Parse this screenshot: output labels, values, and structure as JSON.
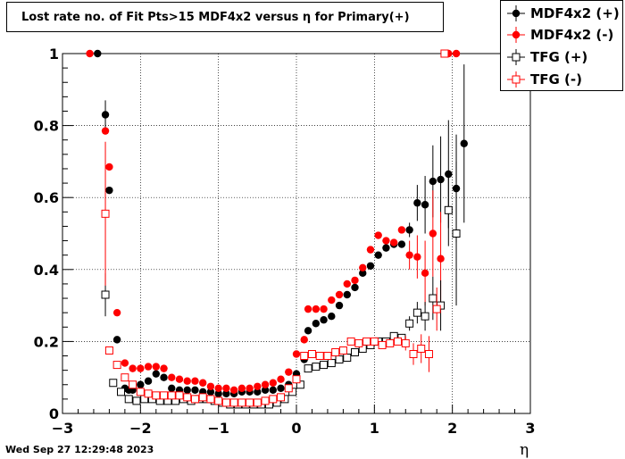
{
  "title": "Lost rate no. of Fit Pts>15 MDF4x2 versus η for Primary(+)",
  "date_stamp": "Wed Sep 27 12:29:48 2023",
  "chart_data": {
    "type": "scatter",
    "xlabel": "η",
    "ylabel": "",
    "xlim": [
      -3,
      3
    ],
    "ylim": [
      0,
      1.02
    ],
    "x_ticks": [
      "−3",
      "−2",
      "−1",
      "0",
      "1",
      "2",
      "3"
    ],
    "y_ticks": [
      "0",
      "0.2",
      "0.4",
      "0.6",
      "0.8",
      "1"
    ],
    "grid": true,
    "legend_position": "top-right",
    "series": [
      {
        "name": "MDF4x2 (+)",
        "color": "#000000",
        "marker": "filled-circle",
        "points": [
          [
            -2.55,
            1.0,
            0
          ],
          [
            -2.45,
            0.83,
            0.04
          ],
          [
            -2.4,
            0.62,
            0
          ],
          [
            -2.3,
            0.205,
            0
          ],
          [
            -2.2,
            0.07,
            0
          ],
          [
            -2.15,
            0.065,
            0
          ],
          [
            -2.1,
            0.065,
            0
          ],
          [
            -2.0,
            0.08,
            0
          ],
          [
            -1.9,
            0.09,
            0
          ],
          [
            -1.8,
            0.11,
            0
          ],
          [
            -1.7,
            0.1,
            0
          ],
          [
            -1.6,
            0.07,
            0
          ],
          [
            -1.5,
            0.065,
            0
          ],
          [
            -1.4,
            0.065,
            0
          ],
          [
            -1.3,
            0.065,
            0
          ],
          [
            -1.2,
            0.06,
            0
          ],
          [
            -1.1,
            0.06,
            0
          ],
          [
            -1.0,
            0.055,
            0
          ],
          [
            -0.9,
            0.055,
            0
          ],
          [
            -0.8,
            0.055,
            0
          ],
          [
            -0.7,
            0.06,
            0
          ],
          [
            -0.6,
            0.06,
            0
          ],
          [
            -0.5,
            0.06,
            0
          ],
          [
            -0.4,
            0.065,
            0
          ],
          [
            -0.3,
            0.065,
            0
          ],
          [
            -0.2,
            0.07,
            0
          ],
          [
            -0.1,
            0.08,
            0
          ],
          [
            0.0,
            0.11,
            0
          ],
          [
            0.1,
            0.15,
            0
          ],
          [
            0.15,
            0.23,
            0
          ],
          [
            0.25,
            0.25,
            0
          ],
          [
            0.35,
            0.26,
            0
          ],
          [
            0.45,
            0.27,
            0
          ],
          [
            0.55,
            0.3,
            0
          ],
          [
            0.65,
            0.33,
            0
          ],
          [
            0.75,
            0.35,
            0
          ],
          [
            0.85,
            0.39,
            0
          ],
          [
            0.95,
            0.41,
            0
          ],
          [
            1.05,
            0.44,
            0
          ],
          [
            1.15,
            0.46,
            0
          ],
          [
            1.25,
            0.47,
            0
          ],
          [
            1.35,
            0.47,
            0
          ],
          [
            1.45,
            0.51,
            0.02
          ],
          [
            1.55,
            0.585,
            0.05
          ],
          [
            1.65,
            0.58,
            0.08
          ],
          [
            1.75,
            0.645,
            0.1
          ],
          [
            1.85,
            0.65,
            0.12
          ],
          [
            1.95,
            0.665,
            0.15
          ],
          [
            2.05,
            0.625,
            0.15
          ],
          [
            2.15,
            0.75,
            0.22
          ]
        ]
      },
      {
        "name": "MDF4x2 (-)",
        "color": "#ff0000",
        "marker": "filled-circle",
        "points": [
          [
            -2.65,
            1.0,
            0
          ],
          [
            -2.45,
            0.785,
            0
          ],
          [
            -2.4,
            0.685,
            0
          ],
          [
            -2.3,
            0.28,
            0
          ],
          [
            -2.2,
            0.14,
            0
          ],
          [
            -2.1,
            0.125,
            0
          ],
          [
            -2.0,
            0.125,
            0
          ],
          [
            -1.9,
            0.13,
            0
          ],
          [
            -1.8,
            0.13,
            0
          ],
          [
            -1.7,
            0.125,
            0
          ],
          [
            -1.6,
            0.1,
            0
          ],
          [
            -1.5,
            0.095,
            0
          ],
          [
            -1.4,
            0.09,
            0
          ],
          [
            -1.3,
            0.09,
            0
          ],
          [
            -1.2,
            0.085,
            0
          ],
          [
            -1.1,
            0.075,
            0
          ],
          [
            -1.0,
            0.07,
            0
          ],
          [
            -0.9,
            0.07,
            0
          ],
          [
            -0.8,
            0.065,
            0
          ],
          [
            -0.7,
            0.07,
            0
          ],
          [
            -0.6,
            0.07,
            0
          ],
          [
            -0.5,
            0.075,
            0
          ],
          [
            -0.4,
            0.08,
            0
          ],
          [
            -0.3,
            0.085,
            0
          ],
          [
            -0.2,
            0.095,
            0
          ],
          [
            -0.1,
            0.115,
            0
          ],
          [
            0.0,
            0.165,
            0
          ],
          [
            0.1,
            0.205,
            0
          ],
          [
            0.15,
            0.29,
            0
          ],
          [
            0.25,
            0.29,
            0
          ],
          [
            0.35,
            0.29,
            0
          ],
          [
            0.45,
            0.315,
            0
          ],
          [
            0.55,
            0.33,
            0
          ],
          [
            0.65,
            0.36,
            0
          ],
          [
            0.75,
            0.37,
            0
          ],
          [
            0.85,
            0.405,
            0
          ],
          [
            0.95,
            0.455,
            0
          ],
          [
            1.05,
            0.495,
            0
          ],
          [
            1.15,
            0.48,
            0
          ],
          [
            1.25,
            0.475,
            0
          ],
          [
            1.35,
            0.51,
            0
          ],
          [
            1.45,
            0.44,
            0.04
          ],
          [
            1.55,
            0.435,
            0.06
          ],
          [
            1.65,
            0.39,
            0.09
          ],
          [
            1.75,
            0.5,
            0.12
          ],
          [
            1.85,
            0.43,
            0.13
          ],
          [
            1.95,
            1.0,
            0
          ],
          [
            2.05,
            1.0,
            0
          ]
        ]
      },
      {
        "name": "TFG (+)",
        "color": "#000000",
        "marker": "open-square",
        "points": [
          [
            -2.45,
            0.33,
            0.06
          ],
          [
            -2.35,
            0.085,
            0
          ],
          [
            -2.25,
            0.06,
            0
          ],
          [
            -2.15,
            0.04,
            0
          ],
          [
            -2.05,
            0.035,
            0
          ],
          [
            -1.95,
            0.04,
            0
          ],
          [
            -1.85,
            0.04,
            0
          ],
          [
            -1.75,
            0.035,
            0
          ],
          [
            -1.65,
            0.035,
            0
          ],
          [
            -1.55,
            0.035,
            0
          ],
          [
            -1.45,
            0.04,
            0
          ],
          [
            -1.35,
            0.035,
            0
          ],
          [
            -1.25,
            0.04,
            0
          ],
          [
            -1.15,
            0.04,
            0
          ],
          [
            -1.05,
            0.035,
            0
          ],
          [
            -0.95,
            0.03,
            0
          ],
          [
            -0.85,
            0.025,
            0
          ],
          [
            -0.75,
            0.025,
            0
          ],
          [
            -0.65,
            0.025,
            0
          ],
          [
            -0.55,
            0.025,
            0
          ],
          [
            -0.45,
            0.025,
            0
          ],
          [
            -0.35,
            0.025,
            0
          ],
          [
            -0.25,
            0.03,
            0
          ],
          [
            -0.15,
            0.04,
            0
          ],
          [
            -0.05,
            0.06,
            0
          ],
          [
            0.05,
            0.08,
            0
          ],
          [
            0.15,
            0.125,
            0
          ],
          [
            0.25,
            0.13,
            0
          ],
          [
            0.35,
            0.135,
            0
          ],
          [
            0.45,
            0.14,
            0
          ],
          [
            0.55,
            0.15,
            0
          ],
          [
            0.65,
            0.155,
            0
          ],
          [
            0.75,
            0.17,
            0
          ],
          [
            0.85,
            0.18,
            0
          ],
          [
            0.95,
            0.19,
            0
          ],
          [
            1.05,
            0.2,
            0
          ],
          [
            1.15,
            0.2,
            0
          ],
          [
            1.25,
            0.215,
            0
          ],
          [
            1.35,
            0.21,
            0
          ],
          [
            1.45,
            0.25,
            0.02
          ],
          [
            1.55,
            0.28,
            0.03
          ],
          [
            1.65,
            0.27,
            0.04
          ],
          [
            1.75,
            0.32,
            0.06
          ],
          [
            1.85,
            0.3,
            0.07
          ],
          [
            1.95,
            0.565,
            0.1
          ],
          [
            2.05,
            0.5,
            0.2
          ]
        ]
      },
      {
        "name": "TFG (-)",
        "color": "#ff0000",
        "marker": "open-square",
        "points": [
          [
            -2.45,
            0.555,
            0.2
          ],
          [
            -2.4,
            0.175,
            0
          ],
          [
            -2.3,
            0.135,
            0
          ],
          [
            -2.2,
            0.1,
            0
          ],
          [
            -2.1,
            0.08,
            0
          ],
          [
            -2.0,
            0.06,
            0
          ],
          [
            -1.9,
            0.055,
            0
          ],
          [
            -1.8,
            0.05,
            0
          ],
          [
            -1.7,
            0.05,
            0
          ],
          [
            -1.6,
            0.05,
            0
          ],
          [
            -1.5,
            0.05,
            0
          ],
          [
            -1.4,
            0.045,
            0
          ],
          [
            -1.3,
            0.04,
            0
          ],
          [
            -1.2,
            0.045,
            0
          ],
          [
            -1.1,
            0.04,
            0
          ],
          [
            -1.0,
            0.035,
            0
          ],
          [
            -0.9,
            0.03,
            0
          ],
          [
            -0.8,
            0.03,
            0
          ],
          [
            -0.7,
            0.03,
            0
          ],
          [
            -0.6,
            0.03,
            0
          ],
          [
            -0.5,
            0.03,
            0
          ],
          [
            -0.4,
            0.035,
            0
          ],
          [
            -0.3,
            0.04,
            0
          ],
          [
            -0.2,
            0.045,
            0
          ],
          [
            -0.1,
            0.07,
            0
          ],
          [
            0.0,
            0.095,
            0
          ],
          [
            0.1,
            0.16,
            0
          ],
          [
            0.2,
            0.165,
            0
          ],
          [
            0.3,
            0.16,
            0
          ],
          [
            0.4,
            0.16,
            0
          ],
          [
            0.5,
            0.17,
            0
          ],
          [
            0.6,
            0.175,
            0
          ],
          [
            0.7,
            0.2,
            0
          ],
          [
            0.8,
            0.195,
            0
          ],
          [
            0.9,
            0.2,
            0
          ],
          [
            1.0,
            0.2,
            0
          ],
          [
            1.1,
            0.19,
            0
          ],
          [
            1.2,
            0.195,
            0
          ],
          [
            1.3,
            0.2,
            0
          ],
          [
            1.4,
            0.195,
            0.02
          ],
          [
            1.5,
            0.165,
            0.03
          ],
          [
            1.6,
            0.18,
            0.04
          ],
          [
            1.7,
            0.165,
            0.05
          ],
          [
            1.8,
            0.29,
            0.06
          ],
          [
            1.9,
            1.0,
            0
          ]
        ]
      }
    ]
  }
}
